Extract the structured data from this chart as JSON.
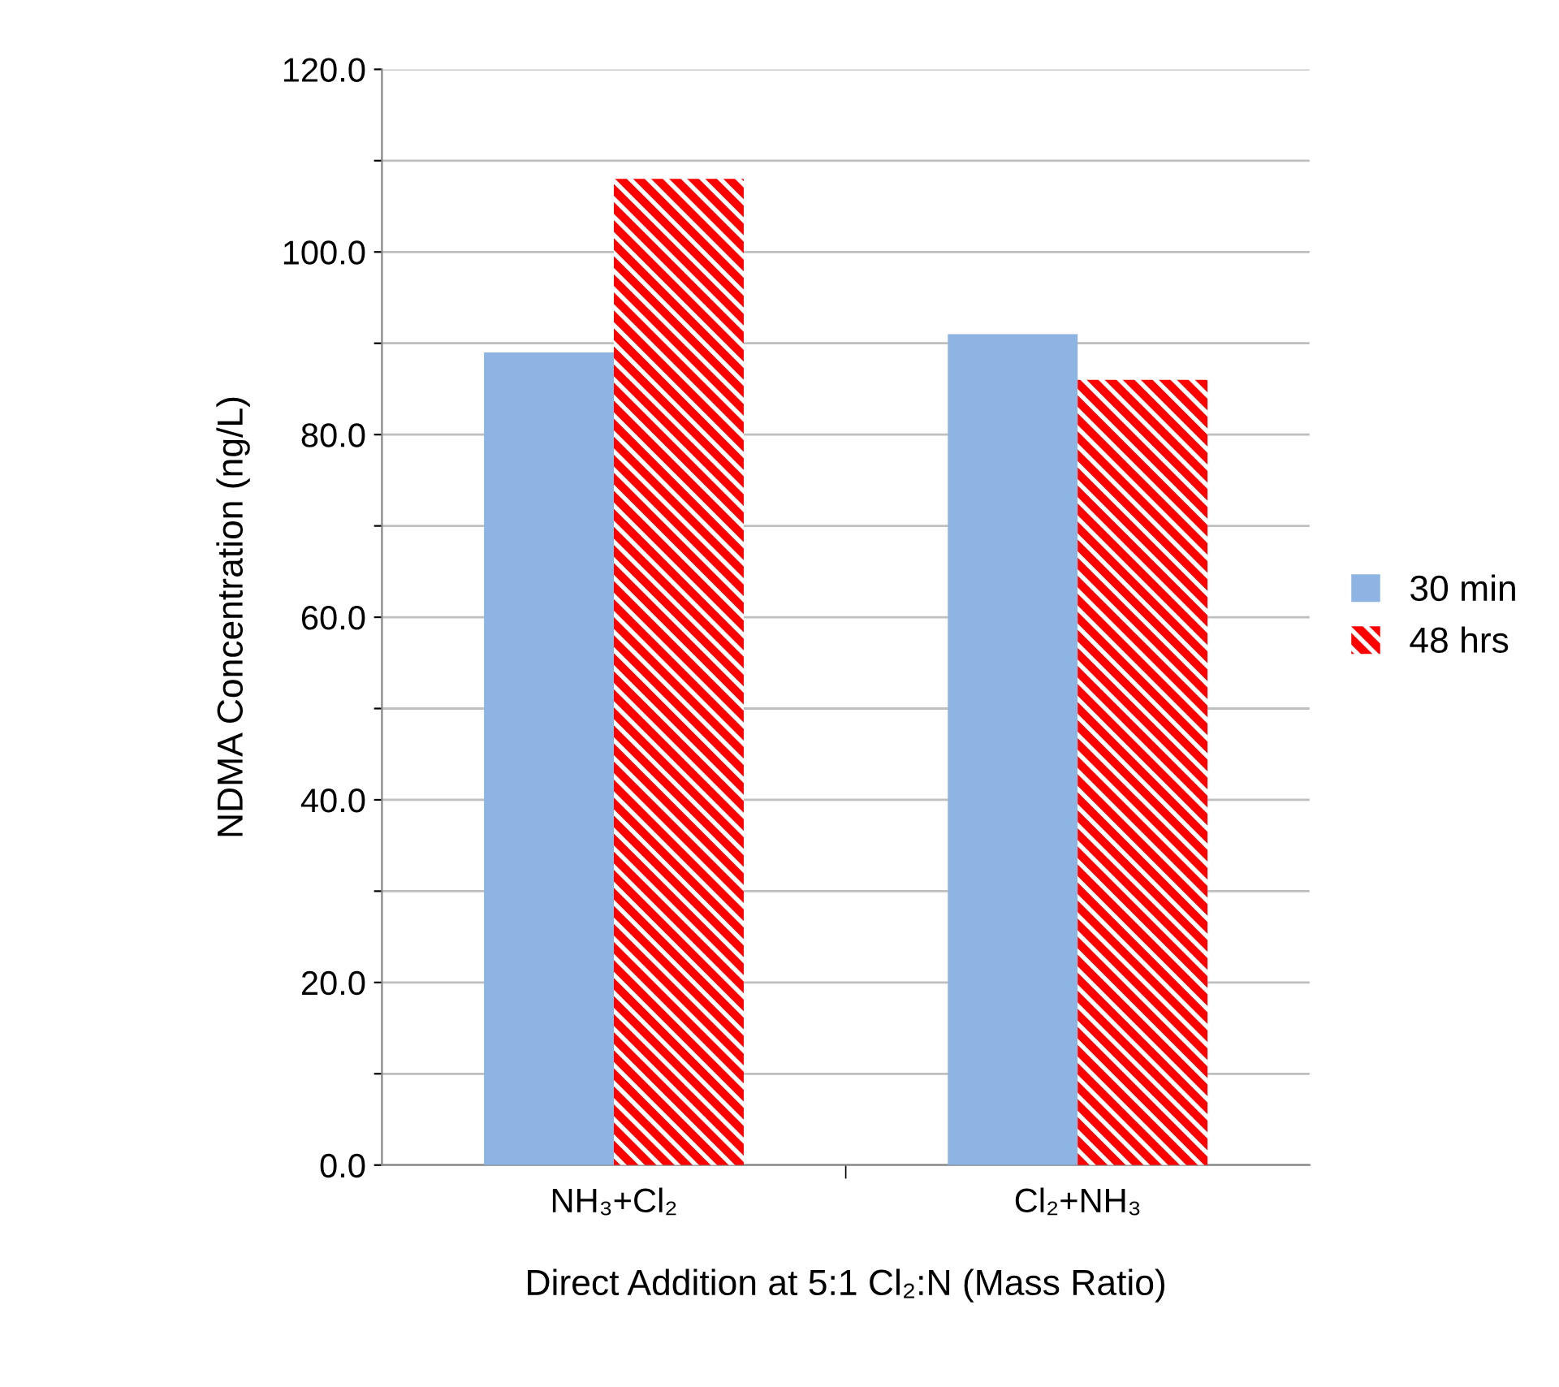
{
  "chart_data": {
    "type": "bar",
    "xlabel": "Direct Addition at 5:1 Cl₂:N (Mass Ratio)",
    "ylabel": "NDMA Concentration (ng/L)",
    "categories": [
      "NH₃+Cl₂",
      "Cl₂+NH₃"
    ],
    "series": [
      {
        "name": "30 min",
        "color": "#8eb4e3",
        "values": [
          89,
          91
        ]
      },
      {
        "name": "48 hrs",
        "color": "#ff0000",
        "values": [
          108,
          86
        ]
      }
    ],
    "ylim": [
      0,
      120
    ],
    "yticks": [
      {
        "value": 0,
        "label": "0.0"
      },
      {
        "value": 10,
        "label": null
      },
      {
        "value": 20,
        "label": "20.0"
      },
      {
        "value": 30,
        "label": null
      },
      {
        "value": 40,
        "label": "40.0"
      },
      {
        "value": 50,
        "label": null
      },
      {
        "value": 60,
        "label": "60.0"
      },
      {
        "value": 70,
        "label": null
      },
      {
        "value": 80,
        "label": "80.0"
      },
      {
        "value": 90,
        "label": null
      },
      {
        "value": 100,
        "label": "100.0"
      },
      {
        "value": 110,
        "label": null
      },
      {
        "value": 120,
        "label": "120.0"
      }
    ],
    "grid": "y",
    "legend": "right"
  }
}
